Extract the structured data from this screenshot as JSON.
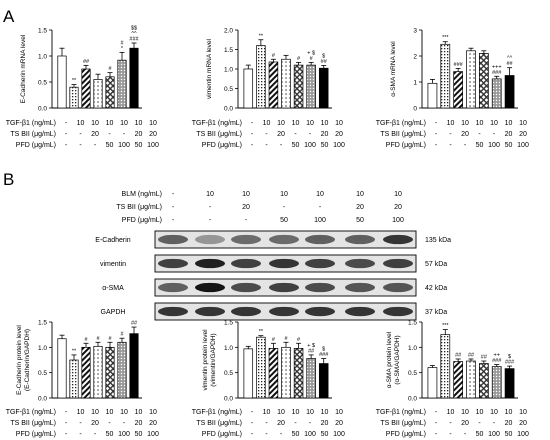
{
  "panel_labels": {
    "a": "A",
    "b": "B"
  },
  "conditions_a": {
    "rows": [
      {
        "label": "TGF-β1 (ng/mL)",
        "values": [
          "-",
          "10",
          "10",
          "10",
          "10",
          "10",
          "10"
        ]
      },
      {
        "label": "TS BII (μg/mL)",
        "values": [
          "-",
          "-",
          "20",
          "-",
          "-",
          "20",
          "20"
        ]
      },
      {
        "label": "PFD (μg/mL)",
        "values": [
          "-",
          "-",
          "-",
          "50",
          "100",
          "50",
          "100"
        ]
      }
    ]
  },
  "conditions_b_top": {
    "rows": [
      {
        "label": "BLM (ng/mL)",
        "values": [
          "-",
          "10",
          "10",
          "10",
          "10",
          "10",
          "10"
        ]
      },
      {
        "label": "TS BII (μg/mL)",
        "values": [
          "-",
          "-",
          "20",
          "-",
          "-",
          "20",
          "20"
        ]
      },
      {
        "label": "PFD (μg/mL)",
        "values": [
          "-",
          "-",
          "-",
          "50",
          "100",
          "50",
          "100"
        ]
      }
    ]
  },
  "conditions_b_bottom": {
    "rows": [
      {
        "label": "TGF-β1 (ng/mL)",
        "values": [
          "-",
          "10",
          "10",
          "10",
          "10",
          "10",
          "10"
        ]
      },
      {
        "label": "TS BII (μg/mL)",
        "values": [
          "-",
          "-",
          "20",
          "-",
          "-",
          "20",
          "20"
        ]
      },
      {
        "label": "PFD (μg/mL)",
        "values": [
          "-",
          "-",
          "-",
          "50",
          "100",
          "50",
          "100"
        ]
      }
    ]
  },
  "western_blot": {
    "bands": [
      {
        "name": "E-Cadherin",
        "kda": "135 kDa",
        "intensity": [
          0.6,
          0.35,
          0.55,
          0.55,
          0.6,
          0.6,
          0.8
        ]
      },
      {
        "name": "vimentin",
        "kda": "57 kDa",
        "intensity": [
          0.75,
          0.9,
          0.75,
          0.8,
          0.75,
          0.7,
          0.75
        ]
      },
      {
        "name": "α-SMA",
        "kda": "42 kDa",
        "intensity": [
          0.6,
          0.95,
          0.7,
          0.75,
          0.7,
          0.65,
          0.65
        ]
      },
      {
        "name": "GAPDH",
        "kda": "37 kDa",
        "intensity": [
          0.8,
          0.8,
          0.8,
          0.8,
          0.8,
          0.8,
          0.8
        ]
      }
    ]
  },
  "chart_data": [
    {
      "type": "bar",
      "panel": "A",
      "ylabel": "E-Cadherin mRNA level",
      "ylim": [
        0,
        1.5
      ],
      "yticks": [
        "0.0",
        "0.5",
        "1.0",
        "1.5"
      ],
      "values": [
        1.0,
        0.4,
        0.75,
        0.55,
        0.6,
        0.92,
        1.15
      ],
      "errors": [
        0.15,
        0.05,
        0.07,
        0.1,
        0.08,
        0.15,
        0.1
      ],
      "annotations": [
        "",
        "**",
        "##",
        "",
        "#",
        "#\n*",
        "$$\n^^\n###"
      ]
    },
    {
      "type": "bar",
      "panel": "A",
      "ylabel": "vimentin mRNA level",
      "ylim": [
        0,
        2.0
      ],
      "yticks": [
        "0.0",
        "0.5",
        "1.0",
        "1.5",
        "2.0"
      ],
      "values": [
        1.0,
        1.6,
        1.18,
        1.25,
        1.1,
        1.1,
        1.02
      ],
      "errors": [
        0.1,
        0.15,
        0.07,
        0.1,
        0.07,
        0.07,
        0.07
      ],
      "annotations": [
        "",
        "**",
        "#",
        "",
        "#",
        "+ $\n#",
        "$\n##"
      ]
    },
    {
      "type": "bar",
      "panel": "A",
      "ylabel": "α-SMA mRNA level",
      "ylim": [
        0,
        3
      ],
      "yticks": [
        "0",
        "1",
        "2",
        "3"
      ],
      "values": [
        0.95,
        2.45,
        1.4,
        2.2,
        2.1,
        1.12,
        1.25
      ],
      "errors": [
        0.15,
        0.1,
        0.12,
        0.1,
        0.1,
        0.1,
        0.3
      ],
      "annotations": [
        "",
        "***",
        "###",
        "",
        "",
        "+++\n###",
        "^^\n##"
      ]
    },
    {
      "type": "bar",
      "panel": "B",
      "ylabel": "E-Cadherin protein level\n(E-Cadherin/GAPDH)",
      "ylim": [
        0,
        1.5
      ],
      "yticks": [
        "0.0",
        "0.5",
        "1.0",
        "1.5"
      ],
      "values": [
        1.17,
        0.75,
        1.0,
        1.02,
        1.0,
        1.1,
        1.27
      ],
      "errors": [
        0.07,
        0.1,
        0.08,
        0.08,
        0.1,
        0.08,
        0.13
      ],
      "annotations": [
        "",
        "**",
        "#",
        "#",
        "#",
        "#",
        "##"
      ]
    },
    {
      "type": "bar",
      "panel": "B",
      "ylabel": "vimentin protein level\n(vimentin/GAPDH)",
      "ylim": [
        0,
        1.5
      ],
      "yticks": [
        "0.0",
        "0.5",
        "1.0",
        "1.5"
      ],
      "values": [
        0.97,
        1.2,
        0.98,
        1.0,
        0.98,
        0.78,
        0.68
      ],
      "errors": [
        0.05,
        0.03,
        0.1,
        0.1,
        0.1,
        0.07,
        0.1
      ],
      "annotations": [
        "",
        "**",
        "#",
        "#",
        "#",
        "+ $\n##",
        "$\n###"
      ]
    },
    {
      "type": "bar",
      "panel": "B",
      "ylabel": "α-SMA protein level\n(α-SMA/GAPDH)",
      "ylim": [
        0,
        1.5
      ],
      "yticks": [
        "0.0",
        "0.5",
        "1.0",
        "1.5"
      ],
      "values": [
        0.6,
        1.25,
        0.72,
        0.73,
        0.68,
        0.62,
        0.58
      ],
      "errors": [
        0.04,
        0.1,
        0.05,
        0.04,
        0.05,
        0.04,
        0.05
      ],
      "annotations": [
        "",
        "***",
        "##",
        "##",
        "##",
        "++\n###",
        "$\n###"
      ]
    }
  ]
}
